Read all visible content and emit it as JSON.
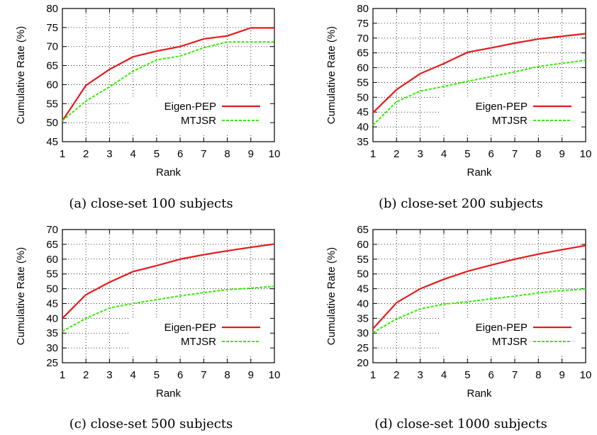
{
  "figure": {
    "legend": {
      "series1": "Eigen-PEP",
      "series2": "MTJSR"
    },
    "colors": {
      "Eigen-PEP": "#e41a1c",
      "MTJSR": "#33ee00"
    }
  },
  "chart_data": [
    {
      "type": "line",
      "caption": "(a) close-set 100 subjects",
      "xlabel": "Rank",
      "ylabel": "Cumulative Rate (%)",
      "x": [
        1,
        2,
        3,
        4,
        5,
        6,
        7,
        8,
        9,
        10
      ],
      "xlim": [
        1,
        10
      ],
      "ylim": [
        45,
        80
      ],
      "yticks": [
        45,
        50,
        55,
        60,
        65,
        70,
        75,
        80
      ],
      "grid": true,
      "legend_position": "lower-right",
      "series": [
        {
          "name": "Eigen-PEP",
          "values": [
            50.5,
            59.8,
            64.0,
            67.3,
            68.8,
            70.0,
            72.0,
            72.8,
            74.9,
            74.9
          ]
        },
        {
          "name": "MTJSR",
          "values": [
            50.5,
            55.7,
            59.4,
            63.5,
            66.5,
            67.5,
            69.7,
            71.2,
            71.2,
            71.2
          ]
        }
      ]
    },
    {
      "type": "line",
      "caption": "(b) close-set 200 subjects",
      "xlabel": "Rank",
      "ylabel": "Cumulative Rate (%)",
      "x": [
        1,
        2,
        3,
        4,
        5,
        6,
        7,
        8,
        9,
        10
      ],
      "xlim": [
        1,
        10
      ],
      "ylim": [
        35,
        80
      ],
      "yticks": [
        35,
        40,
        45,
        50,
        55,
        60,
        65,
        70,
        75,
        80
      ],
      "grid": true,
      "legend_position": "lower-right",
      "series": [
        {
          "name": "Eigen-PEP",
          "values": [
            44.8,
            52.6,
            58.0,
            61.4,
            65.2,
            66.7,
            68.3,
            69.7,
            70.6,
            71.5
          ]
        },
        {
          "name": "MTJSR",
          "values": [
            40.6,
            48.5,
            52.1,
            53.7,
            55.4,
            57.0,
            58.6,
            60.4,
            61.5,
            62.5
          ]
        }
      ]
    },
    {
      "type": "line",
      "caption": "(c) close-set 500 subjects",
      "xlabel": "Rank",
      "ylabel": "Cumulative Rate (%)",
      "x": [
        1,
        2,
        3,
        4,
        5,
        6,
        7,
        8,
        9,
        10
      ],
      "xlim": [
        1,
        10
      ],
      "ylim": [
        25,
        70
      ],
      "yticks": [
        25,
        30,
        35,
        40,
        45,
        50,
        55,
        60,
        65,
        70
      ],
      "grid": true,
      "legend_position": "lower-right",
      "series": [
        {
          "name": "Eigen-PEP",
          "values": [
            40.0,
            48.0,
            52.2,
            55.8,
            57.8,
            60.0,
            61.5,
            62.8,
            64.0,
            65.1
          ]
        },
        {
          "name": "MTJSR",
          "values": [
            35.6,
            40.0,
            43.5,
            45.0,
            46.3,
            47.6,
            48.7,
            49.7,
            50.2,
            50.8
          ]
        }
      ]
    },
    {
      "type": "line",
      "caption": "(d) close-set 1000 subjects",
      "xlabel": "Rank",
      "ylabel": "Cumulative Rate (%)",
      "x": [
        1,
        2,
        3,
        4,
        5,
        6,
        7,
        8,
        9,
        10
      ],
      "xlim": [
        1,
        10
      ],
      "ylim": [
        20,
        65
      ],
      "yticks": [
        20,
        25,
        30,
        35,
        40,
        45,
        50,
        55,
        60,
        65
      ],
      "grid": true,
      "legend_position": "lower-right",
      "series": [
        {
          "name": "Eigen-PEP",
          "values": [
            31.5,
            40.3,
            45.0,
            48.2,
            50.9,
            53.0,
            55.0,
            56.7,
            58.2,
            59.6
          ]
        },
        {
          "name": "MTJSR",
          "values": [
            30.2,
            34.8,
            38.2,
            39.8,
            40.6,
            41.6,
            42.5,
            43.6,
            44.4,
            44.9
          ]
        }
      ]
    }
  ]
}
